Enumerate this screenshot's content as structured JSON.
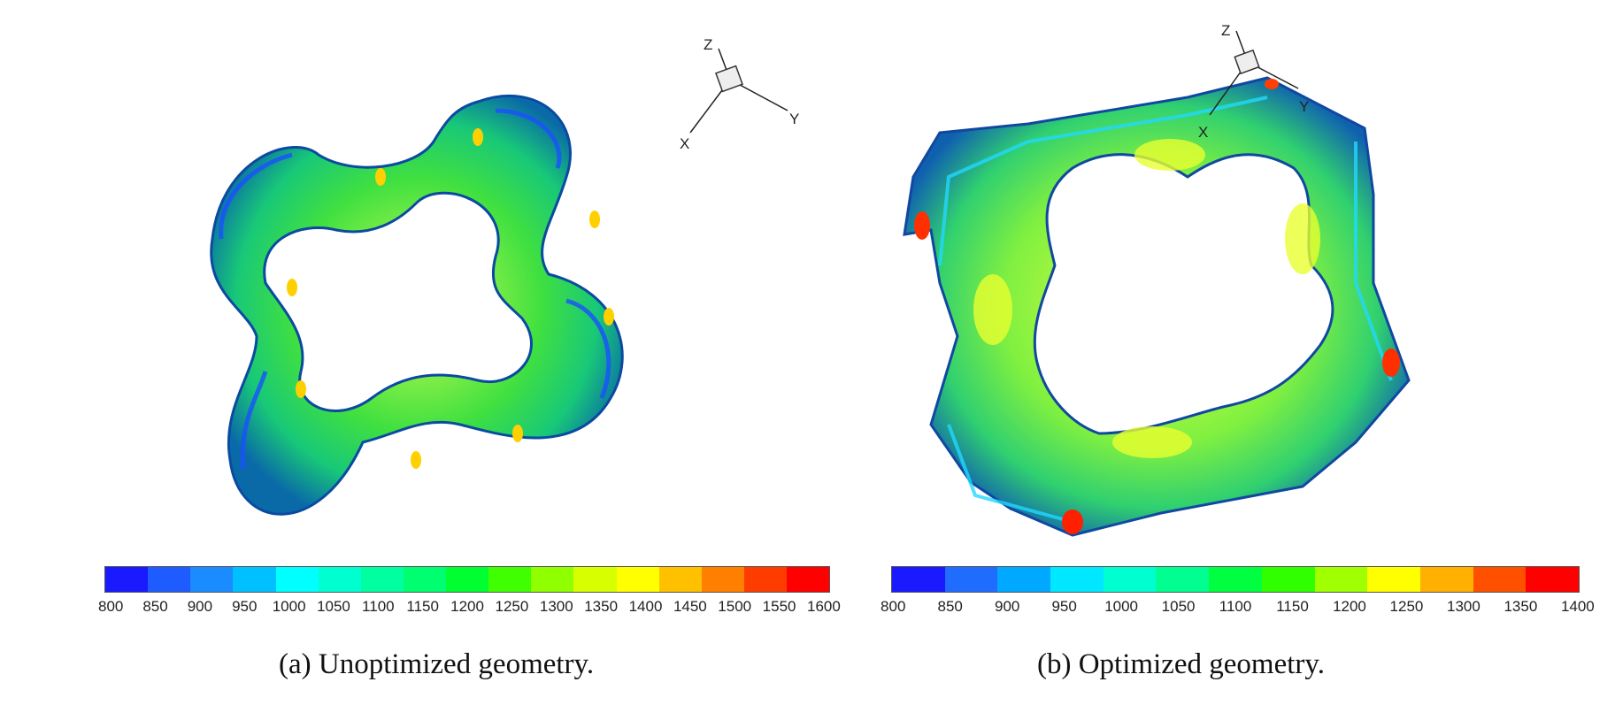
{
  "panels": [
    {
      "caption": "(a) Unoptimized geometry.",
      "axes": {
        "x": "X",
        "y": "Y",
        "z": "Z"
      },
      "colorbar": {
        "ticks": [
          "800",
          "850",
          "900",
          "950",
          "1000",
          "1050",
          "1100",
          "1150",
          "1200",
          "1250",
          "1300",
          "1350",
          "1400",
          "1450",
          "1500",
          "1550",
          "1600"
        ],
        "colors": [
          "#1a1aff",
          "#1f5cff",
          "#1a8cff",
          "#00c0ff",
          "#00ffff",
          "#00ffd0",
          "#00ffa0",
          "#00ff70",
          "#00ff30",
          "#40ff00",
          "#90ff00",
          "#d8ff00",
          "#ffff00",
          "#ffc000",
          "#ff8000",
          "#ff3c00",
          "#ff0000"
        ]
      }
    },
    {
      "caption": "(b) Optimized geometry.",
      "axes": {
        "x": "X",
        "y": "Y",
        "z": "Z"
      },
      "colorbar": {
        "ticks": [
          "800",
          "850",
          "900",
          "950",
          "1000",
          "1050",
          "1100",
          "1150",
          "1200",
          "1250",
          "1300",
          "1350",
          "1400"
        ],
        "colors": [
          "#1a1aff",
          "#1f6cff",
          "#00a8ff",
          "#00e8ff",
          "#00ffd0",
          "#00ff90",
          "#00ff40",
          "#30ff00",
          "#a0ff00",
          "#ffff00",
          "#ffb000",
          "#ff5000",
          "#ff0000"
        ]
      }
    }
  ]
}
